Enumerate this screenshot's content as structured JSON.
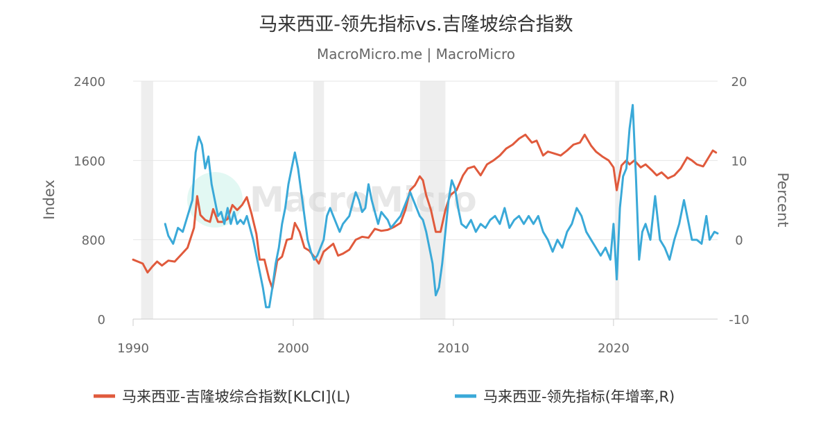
{
  "colors": {
    "klci": "#e05a3c",
    "leading": "#3aa9d8",
    "watermark_logo": "#1dc9a0",
    "recession_band": "#eeeeee"
  },
  "watermark": {
    "text": "MacroMicro"
  },
  "chart_data": {
    "type": "line",
    "title": "马来西亚-领先指标vs.吉隆坡综合指数",
    "subtitle": "MacroMicro.me | MacroMicro",
    "x_ticks": [
      "1990",
      "2000",
      "2010",
      "2020"
    ],
    "xlim": [
      1990,
      2026.5
    ],
    "y_left": {
      "label": "Index",
      "ylim": [
        0,
        2400
      ],
      "ticks": [
        "0",
        "800",
        "1600",
        "2400"
      ]
    },
    "y_right": {
      "label": "Percent",
      "ylim": [
        -10,
        20
      ],
      "ticks": [
        "-10",
        "0",
        "10",
        "20"
      ]
    },
    "grid": true,
    "legend_position": "bottom",
    "recession_bands": [
      [
        1990.5,
        1991.25
      ],
      [
        2001.25,
        2001.92
      ],
      [
        2007.92,
        2009.5
      ],
      [
        2020.1,
        2020.35
      ]
    ],
    "series": [
      {
        "name": "马来西亚-吉隆坡综合指数[KLCI](L)",
        "axis": "left",
        "points": [
          [
            1990.0,
            600
          ],
          [
            1990.3,
            580
          ],
          [
            1990.6,
            560
          ],
          [
            1990.9,
            470
          ],
          [
            1991.2,
            530
          ],
          [
            1991.5,
            580
          ],
          [
            1991.8,
            540
          ],
          [
            1992.2,
            590
          ],
          [
            1992.6,
            580
          ],
          [
            1993.0,
            650
          ],
          [
            1993.4,
            720
          ],
          [
            1993.8,
            920
          ],
          [
            1994.0,
            1240
          ],
          [
            1994.2,
            1050
          ],
          [
            1994.5,
            1000
          ],
          [
            1994.8,
            980
          ],
          [
            1995.0,
            1110
          ],
          [
            1995.3,
            980
          ],
          [
            1995.6,
            980
          ],
          [
            1995.9,
            1010
          ],
          [
            1996.2,
            1150
          ],
          [
            1996.5,
            1100
          ],
          [
            1996.8,
            1150
          ],
          [
            1997.1,
            1230
          ],
          [
            1997.4,
            1060
          ],
          [
            1997.7,
            860
          ],
          [
            1997.9,
            600
          ],
          [
            1998.2,
            600
          ],
          [
            1998.5,
            400
          ],
          [
            1998.7,
            310
          ],
          [
            1999.0,
            590
          ],
          [
            1999.3,
            630
          ],
          [
            1999.6,
            800
          ],
          [
            1999.9,
            810
          ],
          [
            2000.1,
            970
          ],
          [
            2000.4,
            880
          ],
          [
            2000.7,
            720
          ],
          [
            2001.0,
            690
          ],
          [
            2001.3,
            630
          ],
          [
            2001.6,
            560
          ],
          [
            2001.9,
            680
          ],
          [
            2002.2,
            720
          ],
          [
            2002.5,
            760
          ],
          [
            2002.8,
            640
          ],
          [
            2003.1,
            660
          ],
          [
            2003.5,
            700
          ],
          [
            2003.9,
            800
          ],
          [
            2004.3,
            830
          ],
          [
            2004.7,
            820
          ],
          [
            2005.1,
            910
          ],
          [
            2005.5,
            890
          ],
          [
            2005.9,
            900
          ],
          [
            2006.3,
            930
          ],
          [
            2006.7,
            970
          ],
          [
            2007.0,
            1100
          ],
          [
            2007.3,
            1300
          ],
          [
            2007.6,
            1350
          ],
          [
            2007.9,
            1440
          ],
          [
            2008.1,
            1400
          ],
          [
            2008.3,
            1250
          ],
          [
            2008.6,
            1100
          ],
          [
            2008.9,
            880
          ],
          [
            2009.2,
            880
          ],
          [
            2009.5,
            1100
          ],
          [
            2009.8,
            1250
          ],
          [
            2010.2,
            1300
          ],
          [
            2010.6,
            1450
          ],
          [
            2010.9,
            1520
          ],
          [
            2011.3,
            1540
          ],
          [
            2011.7,
            1450
          ],
          [
            2012.1,
            1560
          ],
          [
            2012.5,
            1600
          ],
          [
            2012.9,
            1650
          ],
          [
            2013.3,
            1720
          ],
          [
            2013.7,
            1760
          ],
          [
            2014.1,
            1820
          ],
          [
            2014.5,
            1860
          ],
          [
            2014.9,
            1780
          ],
          [
            2015.2,
            1800
          ],
          [
            2015.6,
            1650
          ],
          [
            2015.9,
            1690
          ],
          [
            2016.3,
            1670
          ],
          [
            2016.7,
            1650
          ],
          [
            2017.1,
            1700
          ],
          [
            2017.5,
            1760
          ],
          [
            2017.9,
            1780
          ],
          [
            2018.2,
            1860
          ],
          [
            2018.6,
            1750
          ],
          [
            2018.9,
            1690
          ],
          [
            2019.3,
            1640
          ],
          [
            2019.7,
            1600
          ],
          [
            2020.0,
            1530
          ],
          [
            2020.2,
            1300
          ],
          [
            2020.5,
            1550
          ],
          [
            2020.8,
            1600
          ],
          [
            2021.0,
            1560
          ],
          [
            2021.3,
            1600
          ],
          [
            2021.7,
            1530
          ],
          [
            2022.0,
            1560
          ],
          [
            2022.4,
            1500
          ],
          [
            2022.7,
            1450
          ],
          [
            2023.0,
            1480
          ],
          [
            2023.4,
            1420
          ],
          [
            2023.8,
            1450
          ],
          [
            2024.2,
            1520
          ],
          [
            2024.6,
            1630
          ],
          [
            2024.9,
            1600
          ],
          [
            2025.2,
            1560
          ],
          [
            2025.6,
            1540
          ],
          [
            2025.9,
            1620
          ],
          [
            2026.2,
            1700
          ],
          [
            2026.4,
            1680
          ]
        ]
      },
      {
        "name": "马来西亚-领先指标(年增率,R)",
        "axis": "right",
        "points": [
          [
            1992.0,
            2.0
          ],
          [
            1992.2,
            0.5
          ],
          [
            1992.5,
            -0.5
          ],
          [
            1992.8,
            1.5
          ],
          [
            1993.1,
            1.0
          ],
          [
            1993.4,
            3.0
          ],
          [
            1993.7,
            5.0
          ],
          [
            1993.9,
            11.0
          ],
          [
            1994.1,
            13.0
          ],
          [
            1994.3,
            12.0
          ],
          [
            1994.5,
            9.0
          ],
          [
            1994.7,
            10.5
          ],
          [
            1994.9,
            7.0
          ],
          [
            1995.1,
            5.0
          ],
          [
            1995.3,
            3.0
          ],
          [
            1995.5,
            3.5
          ],
          [
            1995.7,
            2.0
          ],
          [
            1995.9,
            4.0
          ],
          [
            1996.1,
            2.0
          ],
          [
            1996.3,
            3.5
          ],
          [
            1996.5,
            2.0
          ],
          [
            1996.7,
            2.5
          ],
          [
            1996.9,
            2.0
          ],
          [
            1997.1,
            3.0
          ],
          [
            1997.3,
            1.5
          ],
          [
            1997.5,
            0.0
          ],
          [
            1997.7,
            -2.0
          ],
          [
            1997.9,
            -4.0
          ],
          [
            1998.1,
            -6.0
          ],
          [
            1998.3,
            -8.5
          ],
          [
            1998.5,
            -8.5
          ],
          [
            1998.7,
            -6.0
          ],
          [
            1998.9,
            -3.0
          ],
          [
            1999.1,
            -1.0
          ],
          [
            1999.3,
            2.0
          ],
          [
            1999.5,
            4.0
          ],
          [
            1999.7,
            7.0
          ],
          [
            1999.9,
            9.0
          ],
          [
            2000.1,
            11.0
          ],
          [
            2000.3,
            9.0
          ],
          [
            2000.5,
            6.0
          ],
          [
            2000.7,
            3.0
          ],
          [
            2000.9,
            0.0
          ],
          [
            2001.1,
            -1.5
          ],
          [
            2001.3,
            -2.5
          ],
          [
            2001.5,
            -2.0
          ],
          [
            2001.7,
            -1.0
          ],
          [
            2001.9,
            0.0
          ],
          [
            2002.1,
            3.0
          ],
          [
            2002.3,
            4.0
          ],
          [
            2002.5,
            3.0
          ],
          [
            2002.7,
            2.0
          ],
          [
            2002.9,
            1.0
          ],
          [
            2003.1,
            2.0
          ],
          [
            2003.3,
            2.5
          ],
          [
            2003.5,
            3.0
          ],
          [
            2003.7,
            4.5
          ],
          [
            2003.9,
            6.0
          ],
          [
            2004.1,
            5.0
          ],
          [
            2004.3,
            3.5
          ],
          [
            2004.5,
            4.0
          ],
          [
            2004.7,
            7.0
          ],
          [
            2004.9,
            5.0
          ],
          [
            2005.1,
            3.5
          ],
          [
            2005.3,
            2.0
          ],
          [
            2005.5,
            3.5
          ],
          [
            2005.7,
            3.0
          ],
          [
            2005.9,
            2.5
          ],
          [
            2006.1,
            1.5
          ],
          [
            2006.3,
            2.0
          ],
          [
            2006.5,
            2.5
          ],
          [
            2006.7,
            3.0
          ],
          [
            2006.9,
            4.0
          ],
          [
            2007.1,
            5.0
          ],
          [
            2007.3,
            6.0
          ],
          [
            2007.5,
            5.0
          ],
          [
            2007.7,
            4.0
          ],
          [
            2007.9,
            3.0
          ],
          [
            2008.1,
            2.5
          ],
          [
            2008.3,
            1.0
          ],
          [
            2008.5,
            -1.0
          ],
          [
            2008.7,
            -3.0
          ],
          [
            2008.9,
            -7.0
          ],
          [
            2009.1,
            -6.0
          ],
          [
            2009.3,
            -3.0
          ],
          [
            2009.5,
            1.0
          ],
          [
            2009.7,
            5.0
          ],
          [
            2009.9,
            7.5
          ],
          [
            2010.1,
            6.5
          ],
          [
            2010.3,
            4.0
          ],
          [
            2010.5,
            2.0
          ],
          [
            2010.8,
            1.5
          ],
          [
            2011.1,
            2.5
          ],
          [
            2011.4,
            1.0
          ],
          [
            2011.7,
            2.0
          ],
          [
            2012.0,
            1.5
          ],
          [
            2012.3,
            2.5
          ],
          [
            2012.6,
            3.0
          ],
          [
            2012.9,
            2.0
          ],
          [
            2013.2,
            4.0
          ],
          [
            2013.5,
            1.5
          ],
          [
            2013.8,
            2.5
          ],
          [
            2014.1,
            3.0
          ],
          [
            2014.4,
            2.0
          ],
          [
            2014.7,
            3.0
          ],
          [
            2015.0,
            2.0
          ],
          [
            2015.3,
            3.0
          ],
          [
            2015.6,
            1.0
          ],
          [
            2015.9,
            0.0
          ],
          [
            2016.2,
            -1.5
          ],
          [
            2016.5,
            0.0
          ],
          [
            2016.8,
            -1.0
          ],
          [
            2017.1,
            1.0
          ],
          [
            2017.4,
            2.0
          ],
          [
            2017.7,
            4.0
          ],
          [
            2018.0,
            3.0
          ],
          [
            2018.3,
            1.0
          ],
          [
            2018.6,
            0.0
          ],
          [
            2018.9,
            -1.0
          ],
          [
            2019.2,
            -2.0
          ],
          [
            2019.5,
            -1.0
          ],
          [
            2019.8,
            -2.5
          ],
          [
            2020.0,
            2.0
          ],
          [
            2020.2,
            -5.0
          ],
          [
            2020.4,
            4.0
          ],
          [
            2020.6,
            8.0
          ],
          [
            2020.8,
            9.0
          ],
          [
            2021.0,
            14.0
          ],
          [
            2021.2,
            17.0
          ],
          [
            2021.4,
            8.0
          ],
          [
            2021.6,
            -2.5
          ],
          [
            2021.8,
            1.0
          ],
          [
            2022.0,
            2.0
          ],
          [
            2022.3,
            0.0
          ],
          [
            2022.6,
            5.5
          ],
          [
            2022.9,
            0.0
          ],
          [
            2023.2,
            -1.0
          ],
          [
            2023.5,
            -2.5
          ],
          [
            2023.8,
            0.0
          ],
          [
            2024.1,
            2.0
          ],
          [
            2024.4,
            5.0
          ],
          [
            2024.7,
            2.0
          ],
          [
            2024.9,
            0.0
          ],
          [
            2025.2,
            0.0
          ],
          [
            2025.5,
            -0.5
          ],
          [
            2025.8,
            3.0
          ],
          [
            2026.0,
            0.0
          ],
          [
            2026.3,
            1.0
          ],
          [
            2026.5,
            0.8
          ]
        ]
      }
    ]
  }
}
